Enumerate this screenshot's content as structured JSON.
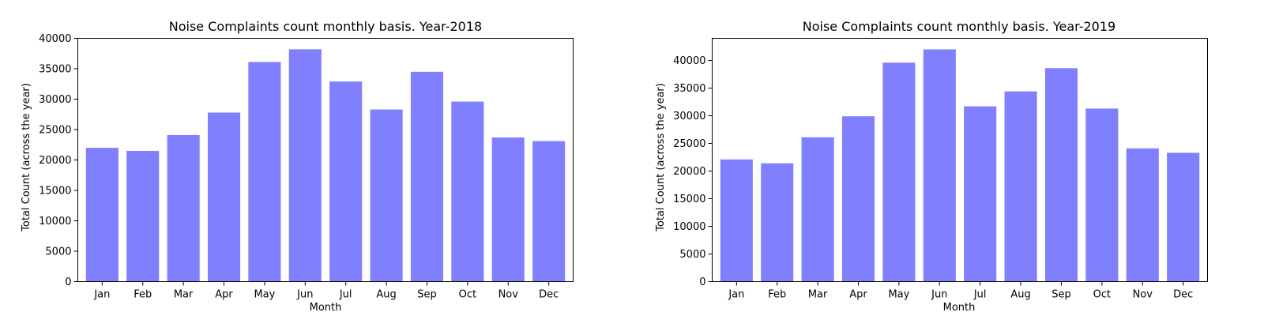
{
  "chart_data": [
    {
      "type": "bar",
      "title": "Noise Complaints count monthly basis. Year-2018",
      "xlabel": "Month",
      "ylabel": "Total Count (across the year)",
      "categories": [
        "Jan",
        "Feb",
        "Mar",
        "Apr",
        "May",
        "Jun",
        "Jul",
        "Aug",
        "Sep",
        "Oct",
        "Nov",
        "Dec"
      ],
      "values": [
        22000,
        21500,
        24100,
        27800,
        36100,
        38200,
        32900,
        28300,
        34500,
        29600,
        23700,
        23100
      ],
      "ylim": [
        0,
        40000
      ],
      "yticks": [
        0,
        5000,
        10000,
        15000,
        20000,
        25000,
        30000,
        35000,
        40000
      ],
      "bar_color": "#8080ff",
      "grid": false
    },
    {
      "type": "bar",
      "title": "Noise Complaints count monthly basis. Year-2019",
      "xlabel": "Month",
      "ylabel": "Total Count (across the year)",
      "categories": [
        "Jan",
        "Feb",
        "Mar",
        "Apr",
        "May",
        "Jun",
        "Jul",
        "Aug",
        "Sep",
        "Oct",
        "Nov",
        "Dec"
      ],
      "values": [
        22100,
        21400,
        26100,
        29900,
        39600,
        42000,
        31700,
        34400,
        38600,
        31300,
        24100,
        23300
      ],
      "ylim": [
        0,
        44000
      ],
      "yticks": [
        0,
        5000,
        10000,
        15000,
        20000,
        25000,
        30000,
        35000,
        40000
      ],
      "bar_color": "#8080ff",
      "grid": false
    }
  ]
}
